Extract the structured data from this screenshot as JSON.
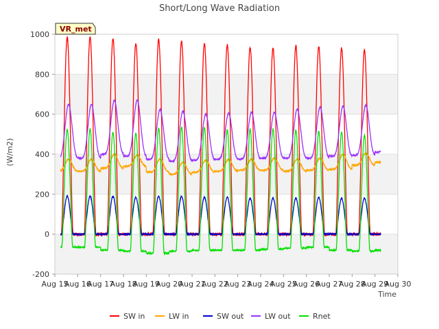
{
  "chart_data": {
    "type": "line",
    "title": "Short/Long Wave Radiation",
    "xlabel": "Time",
    "ylabel": "(W/m2)",
    "site_label": "VR_met",
    "ylim": [
      -200,
      1000
    ],
    "yticks": [
      -200,
      0,
      200,
      400,
      600,
      800,
      1000
    ],
    "xlim": [
      "2025-08-15",
      "2025-08-30"
    ],
    "xticks": [
      "Aug 15",
      "Aug 16",
      "Aug 17",
      "Aug 18",
      "Aug 19",
      "Aug 20",
      "Aug 21",
      "Aug 22",
      "Aug 23",
      "Aug 24",
      "Aug 25",
      "Aug 26",
      "Aug 27",
      "Aug 28",
      "Aug 29",
      "Aug 30"
    ],
    "grid": true,
    "legend_position": "bottom",
    "data_start": "2025-08-15T06:00",
    "data_end": "2025-08-29T06:00",
    "series": [
      {
        "name": "SW in",
        "color": "#ff0000",
        "daily_peak": [
          985,
          980,
          955,
          975,
          965,
          955,
          945,
          935,
          930,
          940,
          940,
          930,
          920,
          850
        ],
        "night": 0
      },
      {
        "name": "LW in",
        "color": "#ffa500",
        "daily_peak": [
          375,
          400,
          395,
          375,
          360,
          370,
          375,
          375,
          380,
          375,
          380,
          400,
          405,
          395
        ],
        "daily_min": [
          315,
          330,
          340,
          310,
          300,
          310,
          315,
          320,
          320,
          315,
          320,
          325,
          345,
          360
        ]
      },
      {
        "name": "SW out",
        "color": "#0000cd",
        "daily_peak": [
          190,
          190,
          185,
          190,
          190,
          185,
          185,
          180,
          180,
          180,
          185,
          180,
          180,
          175
        ],
        "night": 0
      },
      {
        "name": "LW out",
        "color": "#9b30ff",
        "daily_peak": [
          650,
          670,
          670,
          625,
          615,
          600,
          605,
          610,
          610,
          625,
          635,
          640,
          645,
          640
        ],
        "daily_min": [
          380,
          400,
          390,
          375,
          365,
          370,
          375,
          375,
          380,
          380,
          380,
          390,
          395,
          410
        ]
      },
      {
        "name": "Rnet",
        "color": "#00e000",
        "daily_peak": [
          525,
          510,
          505,
          530,
          535,
          535,
          520,
          525,
          525,
          520,
          515,
          510,
          495,
          460
        ],
        "daily_min": [
          -65,
          -80,
          -85,
          -95,
          -85,
          -80,
          -80,
          -80,
          -75,
          -70,
          -65,
          -80,
          -85,
          -80
        ]
      }
    ]
  }
}
